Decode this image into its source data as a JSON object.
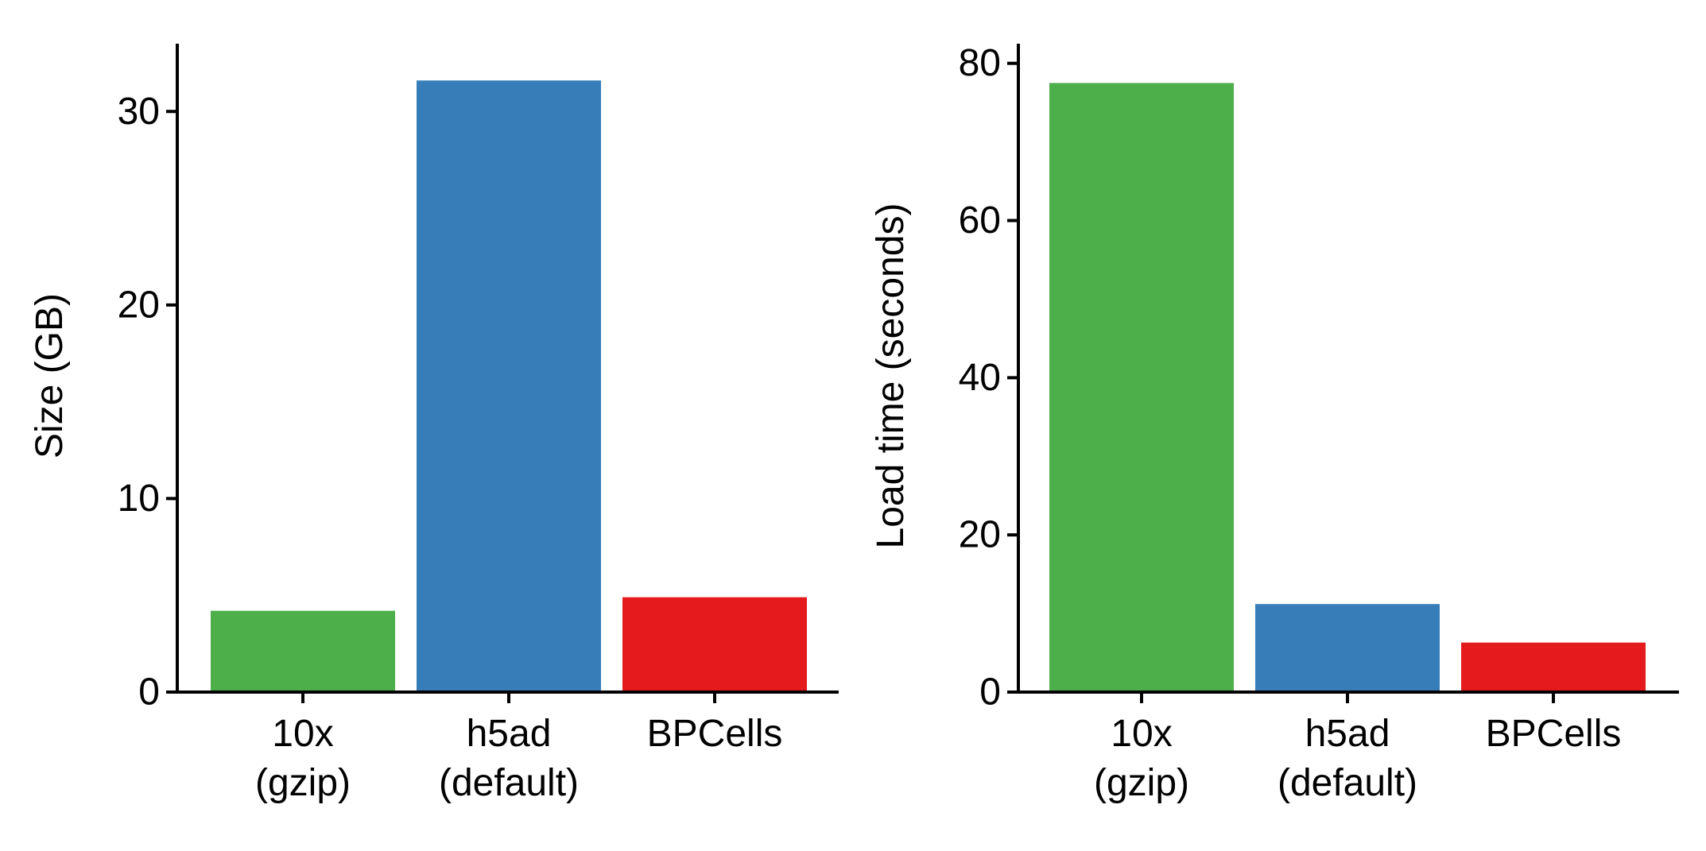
{
  "chart_data": [
    {
      "type": "bar",
      "title": "",
      "xlabel": "",
      "ylabel": "Size (GB)",
      "categories": [
        [
          "10x",
          "(gzip)"
        ],
        [
          "h5ad",
          "(default)"
        ],
        [
          "BPCells"
        ]
      ],
      "values": [
        4.2,
        31.6,
        4.9
      ],
      "colors": [
        "#4daf4a",
        "#377eb8",
        "#e41a1c"
      ],
      "ylim": [
        0,
        33.5
      ],
      "yticks": [
        0,
        10,
        20,
        30
      ],
      "grid": false,
      "legend": "none"
    },
    {
      "type": "bar",
      "title": "",
      "xlabel": "",
      "ylabel": "Load time (seconds)",
      "categories": [
        [
          "10x",
          "(gzip)"
        ],
        [
          "h5ad",
          "(default)"
        ],
        [
          "BPCells"
        ]
      ],
      "values": [
        77.5,
        11.2,
        6.3
      ],
      "colors": [
        "#4daf4a",
        "#377eb8",
        "#e41a1c"
      ],
      "ylim": [
        0,
        82.5
      ],
      "yticks": [
        0,
        20,
        40,
        60,
        80
      ],
      "grid": false,
      "legend": "none"
    }
  ]
}
